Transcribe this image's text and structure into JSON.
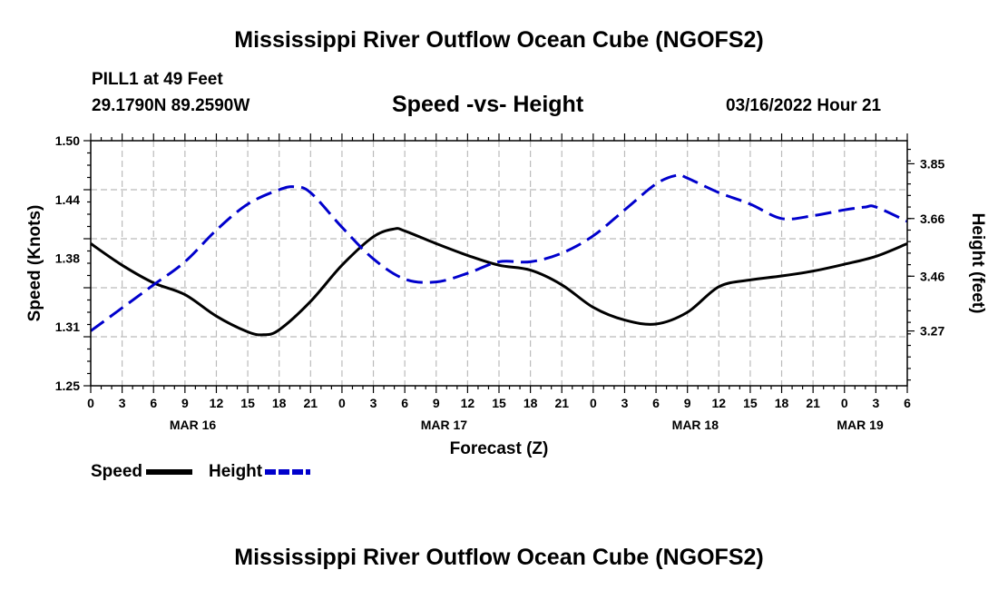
{
  "header": {
    "title": "Mississippi River Outflow Ocean Cube (NGOFS2)",
    "station": "PILL1 at 49 Feet",
    "coords": "29.1790N  89.2590W",
    "subtitle": "Speed -vs- Height",
    "datetime": "03/16/2022 Hour 21"
  },
  "footer": {
    "title": "Mississippi River Outflow Ocean Cube (NGOFS2)"
  },
  "colors": {
    "speed": "#000000",
    "height": "#0000cc",
    "grid": "#bbbbbb"
  },
  "chart_data": {
    "type": "line",
    "xlabel": "Forecast (Z)",
    "ylabel": "Speed (Knots)",
    "y2label": "Height (feet)",
    "x_range": [
      0,
      78
    ],
    "ylim": [
      1.25,
      1.5
    ],
    "y2lim": [
      3.08,
      3.93
    ],
    "y_ticks": [
      "1.50",
      "1.44",
      "1.38",
      "1.31",
      "1.25"
    ],
    "y_tick_values": [
      1.5,
      1.44,
      1.38,
      1.31,
      1.25
    ],
    "y2_ticks": [
      "3.85",
      "3.66",
      "3.46",
      "3.27"
    ],
    "y2_tick_values": [
      3.85,
      3.66,
      3.46,
      3.27
    ],
    "x_tick_labels": [
      "0",
      "3",
      "6",
      "9",
      "12",
      "15",
      "18",
      "21",
      "0",
      "3",
      "6",
      "9",
      "12",
      "15",
      "18",
      "21",
      "0",
      "3",
      "6",
      "9",
      "12",
      "15",
      "18",
      "21",
      "0",
      "3",
      "6"
    ],
    "date_labels": [
      {
        "label": "MAR 16",
        "hour": 9.75
      },
      {
        "label": "MAR 17",
        "hour": 33.75
      },
      {
        "label": "MAR 18",
        "hour": 57.75
      },
      {
        "label": "MAR 19",
        "hour": 73.5
      }
    ],
    "series": [
      {
        "name": "Speed",
        "axis": "left",
        "style": "solid",
        "x": [
          0,
          3,
          6,
          9,
          12,
          15,
          16.5,
          18,
          21,
          24,
          27,
          29,
          30,
          33,
          36,
          39,
          42,
          45,
          48,
          51,
          54,
          57,
          60,
          63,
          66,
          69,
          72,
          75,
          78
        ],
        "y": [
          1.395,
          1.373,
          1.355,
          1.343,
          1.321,
          1.305,
          1.302,
          1.307,
          1.336,
          1.373,
          1.402,
          1.41,
          1.408,
          1.395,
          1.383,
          1.373,
          1.368,
          1.353,
          1.33,
          1.317,
          1.313,
          1.325,
          1.351,
          1.358,
          1.362,
          1.367,
          1.374,
          1.382,
          1.395
        ]
      },
      {
        "name": "Height",
        "axis": "right",
        "style": "dashed",
        "x": [
          0,
          3,
          6,
          9,
          12,
          15,
          18,
          19.5,
          21,
          24,
          27,
          30,
          33,
          36,
          39,
          42,
          45,
          48,
          51,
          54,
          56,
          57,
          60,
          63,
          66,
          69,
          72,
          74,
          75,
          78
        ],
        "y": [
          3.27,
          3.35,
          3.43,
          3.51,
          3.62,
          3.71,
          3.76,
          3.77,
          3.75,
          3.63,
          3.52,
          3.45,
          3.44,
          3.47,
          3.51,
          3.51,
          3.54,
          3.6,
          3.69,
          3.78,
          3.81,
          3.8,
          3.75,
          3.71,
          3.66,
          3.67,
          3.69,
          3.7,
          3.7,
          3.65
        ]
      }
    ],
    "legend": [
      {
        "label": "Speed",
        "style": "solid"
      },
      {
        "label": "Height",
        "style": "dashed"
      }
    ]
  }
}
